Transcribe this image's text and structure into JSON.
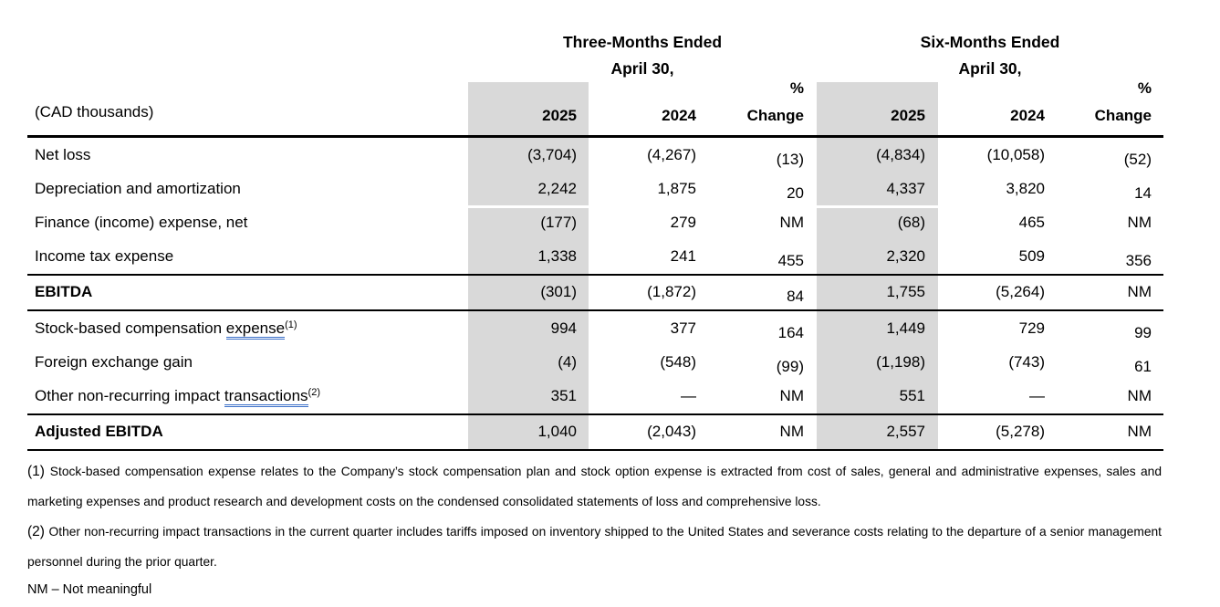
{
  "table": {
    "unit_label": "(CAD thousands)",
    "groups": [
      {
        "title": "Three-Months Ended",
        "subtitle": "April 30,"
      },
      {
        "title": "Six-Months Ended",
        "subtitle": "April 30,"
      }
    ],
    "year_headers": [
      "2025",
      "2024"
    ],
    "pct_header": {
      "line1": "%",
      "line2": "Change"
    },
    "rows": [
      {
        "label": "Net loss",
        "parts": [
          {
            "t": "Net loss"
          }
        ],
        "values": [
          "(3,704)",
          "(4,267)",
          "(13)",
          "(4,834)",
          "(10,058)",
          "(52)"
        ]
      },
      {
        "label": "Depreciation and amortization",
        "parts": [
          {
            "t": "Depreciation and amortization"
          }
        ],
        "values": [
          "2,242",
          "1,875",
          "20",
          "4,337",
          "3,820",
          "14"
        ]
      },
      {
        "label": "Finance (income) expense, net",
        "parts": [
          {
            "t": "Finance (income) expense, net"
          }
        ],
        "values": [
          "(177)",
          "279",
          "NM",
          "(68)",
          "465",
          "NM"
        ]
      },
      {
        "label": "Income tax expense",
        "parts": [
          {
            "t": "Income tax expense"
          }
        ],
        "values": [
          "1,338",
          "241",
          "455",
          "2,320",
          "509",
          "356"
        ],
        "rule_after": true
      },
      {
        "label": "EBITDA",
        "parts": [
          {
            "t": "EBITDA"
          }
        ],
        "values": [
          "(301)",
          "(1,872)",
          "84",
          "1,755",
          "(5,264)",
          "NM"
        ],
        "emphasis": true,
        "rule_after": true
      },
      {
        "label": "Stock-based compensation expense(1)",
        "parts": [
          {
            "t": "Stock-based compensation "
          },
          {
            "t": "expense",
            "u": true
          },
          {
            "t": "(1)",
            "sup": true
          }
        ],
        "values": [
          "994",
          "377",
          "164",
          "1,449",
          "729",
          "99"
        ]
      },
      {
        "label": "Foreign exchange gain",
        "parts": [
          {
            "t": "Foreign exchange gain"
          }
        ],
        "values": [
          "(4)",
          "(548)",
          "(99)",
          "(1,198)",
          "(743)",
          "61"
        ]
      },
      {
        "label": "Other non-recurring impact transactions(2)",
        "parts": [
          {
            "t": "Other non-recurring impact "
          },
          {
            "t": "transactions",
            "u": true
          },
          {
            "t": "(2)",
            "sup": true
          }
        ],
        "values": [
          "351",
          "—",
          "NM",
          "551",
          "—",
          "NM"
        ],
        "rule_after": true
      },
      {
        "label": "Adjusted EBITDA",
        "parts": [
          {
            "t": "Adjusted EBITDA"
          }
        ],
        "values": [
          "1,040",
          "(2,043)",
          "NM",
          "2,557",
          "(5,278)",
          "NM"
        ],
        "emphasis": true,
        "rule_after": true
      }
    ]
  },
  "footnotes": [
    {
      "marker": "(1)",
      "text": "Stock-based compensation expense relates to the Company’s stock compensation plan and stock option expense is extracted from cost of sales, general and administrative expenses, sales and marketing expenses and product research and development costs on the condensed consolidated statements of loss and comprehensive loss."
    },
    {
      "marker": "(2)",
      "text": "Other non-recurring impact transactions in the current quarter includes tariffs imposed on inventory shipped to the United States and severance costs relating to the departure of a senior management personnel during the prior quarter."
    }
  ],
  "legend": "NM – Not meaningful",
  "colors": {
    "row_shading": "#d9d9d9",
    "grammar_underline": "#3a6fc8",
    "rule": "#000000"
  }
}
